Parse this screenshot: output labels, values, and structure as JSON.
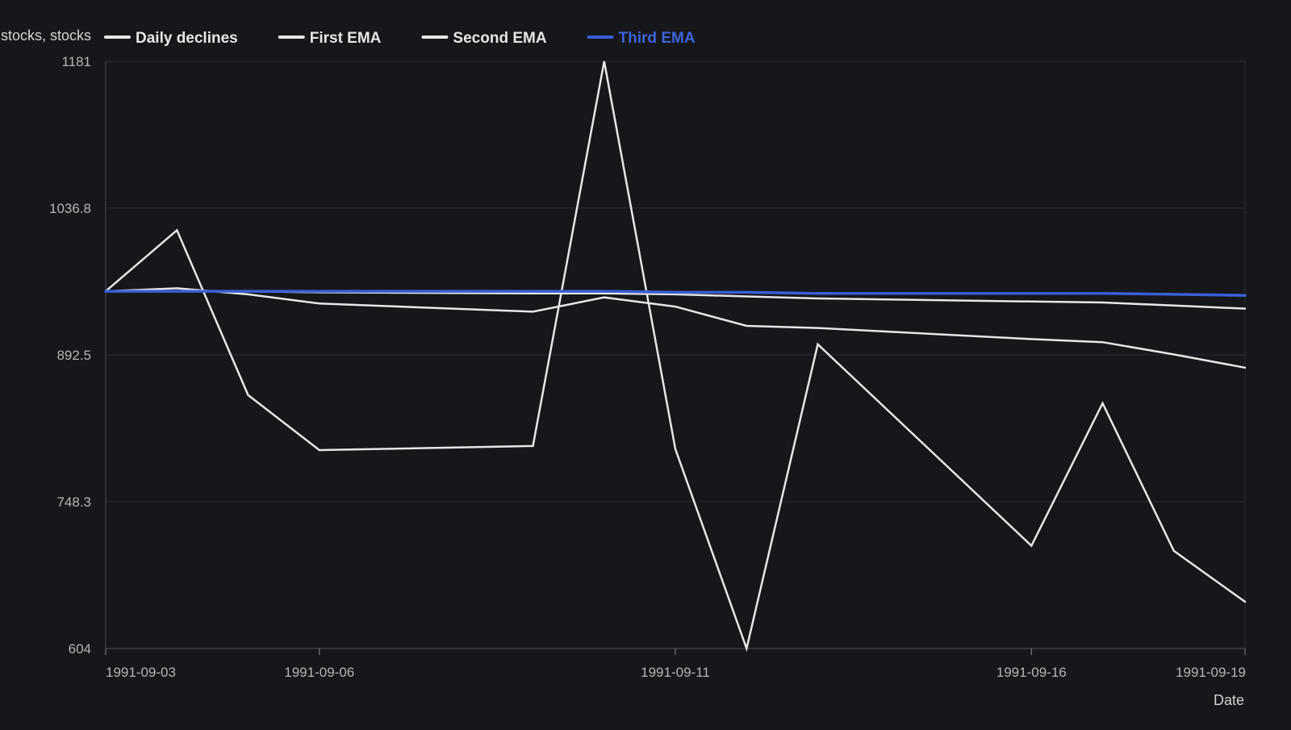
{
  "chart_data": {
    "type": "line",
    "ylabel": "stocks, stocks",
    "xlabel": "Date",
    "x": [
      "1991-09-03",
      "1991-09-04",
      "1991-09-05",
      "1991-09-06",
      "1991-09-09",
      "1991-09-10",
      "1991-09-11",
      "1991-09-12",
      "1991-09-13",
      "1991-09-16",
      "1991-09-17",
      "1991-09-18",
      "1991-09-19"
    ],
    "x_ticks": [
      "1991-09-03",
      "1991-09-06",
      "1991-09-11",
      "1991-09-16",
      "1991-09-19"
    ],
    "ylim": [
      604,
      1181
    ],
    "y_ticks": [
      604,
      748.3,
      892.5,
      1036.8,
      1181
    ],
    "grid": true,
    "legend_position": "top-left",
    "series": [
      {
        "name": "Daily declines",
        "color": "#e6e6e6",
        "values": [
          955,
          1015,
          853,
          799,
          803,
          1181,
          800,
          604,
          903,
          705,
          845,
          700,
          650
        ]
      },
      {
        "name": "First EMA",
        "color": "#e6e6e6",
        "values": [
          955,
          958,
          952,
          943,
          935,
          949,
          940,
          921,
          919,
          908,
          905,
          893,
          880
        ]
      },
      {
        "name": "Second EMA",
        "color": "#e6e6e6",
        "values": [
          955,
          955,
          955,
          954,
          953,
          953,
          952,
          950,
          948,
          945,
          944,
          941,
          938
        ]
      },
      {
        "name": "Third EMA",
        "color": "#3a5fd4",
        "values": [
          955,
          955,
          955,
          955,
          955,
          955,
          954,
          954,
          953,
          953,
          953,
          952,
          951
        ]
      }
    ]
  }
}
